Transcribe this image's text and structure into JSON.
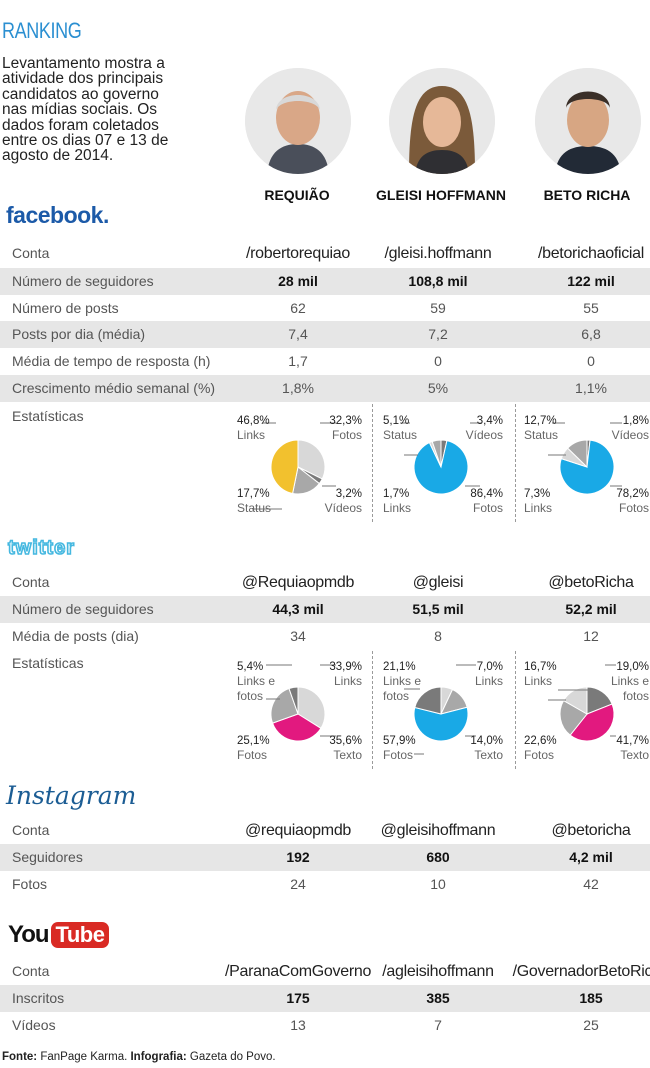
{
  "header": {
    "title": "RANKING",
    "intro_lines": [
      "Levantamento mostra a",
      "atividade dos principais",
      "candidatos ao governo",
      "nas mídias sociais. Os",
      "dados foram coletados",
      "entre os dias 07 e 13 de",
      "agosto de 2014."
    ]
  },
  "candidates": [
    {
      "name": "REQUIÃO"
    },
    {
      "name": "GLEISI HOFFMANN"
    },
    {
      "name": "BETO RICHA"
    }
  ],
  "facebook": {
    "logo": "facebook.",
    "rows": [
      {
        "label": "Conta",
        "values": [
          "/robertorequiao",
          "/gleisi.hoffmann",
          "/betorichaoficial"
        ]
      },
      {
        "label": "Número de seguidores",
        "values": [
          "28 mil",
          "108,8 mil",
          "122 mil"
        ]
      },
      {
        "label": "Número de posts",
        "values": [
          "62",
          "59",
          "55"
        ]
      },
      {
        "label": "Posts por dia (média)",
        "values": [
          "7,4",
          "7,2",
          "6,8"
        ]
      },
      {
        "label": "Média de tempo de resposta (h)",
        "values": [
          "1,7",
          "0",
          "0"
        ]
      },
      {
        "label": "Crescimento médio semanal (%)",
        "values": [
          "1,8%",
          "5%",
          "1,1%"
        ]
      }
    ],
    "stats_label": "Estatísticas"
  },
  "twitter": {
    "logo": "twitter",
    "rows": [
      {
        "label": "Conta",
        "values": [
          "@Requiaopmdb",
          "@gleisi",
          "@betoRicha"
        ]
      },
      {
        "label": "Número de seguidores",
        "values": [
          "44,3 mil",
          "51,5 mil",
          "52,2 mil"
        ]
      },
      {
        "label": "Média de posts (dia)",
        "values": [
          "34",
          "8",
          "12"
        ]
      }
    ],
    "stats_label": "Estatísticas"
  },
  "instagram": {
    "logo": "Instagram",
    "rows": [
      {
        "label": "Conta",
        "values": [
          "@requiaopmdb",
          "@gleisihoffmann",
          "@betoricha"
        ]
      },
      {
        "label": "Seguidores",
        "values": [
          "192",
          "680",
          "4,2 mil"
        ]
      },
      {
        "label": "Fotos",
        "values": [
          "24",
          "10",
          "42"
        ]
      }
    ]
  },
  "youtube": {
    "logo_you": "You",
    "logo_tube": "Tube",
    "rows": [
      {
        "label": "Conta",
        "values": [
          "/ParanaComGoverno",
          "/agleisihoffmann",
          "/GovernadorBetoRicha"
        ]
      },
      {
        "label": "Inscritos",
        "values": [
          "175",
          "385",
          "185"
        ]
      },
      {
        "label": "Vídeos",
        "values": [
          "13",
          "7",
          "25"
        ]
      }
    ]
  },
  "footer": {
    "source_label": "Fonte:",
    "source_value": "FanPage Karma.",
    "info_label": "Infografia:",
    "info_value": "Gazeta do Povo."
  },
  "colors": {
    "yellow": "#f2c12e",
    "cyan": "#19a9e6",
    "magenta": "#e2197f",
    "light": "#d8d8d8",
    "mid": "#a8a8a8",
    "dark": "#7a7a7a"
  },
  "chart_data": [
    {
      "type": "pie",
      "title": "Facebook - Requião",
      "slices": [
        {
          "name": "Fotos",
          "value": 32.3,
          "label": "32,3%",
          "text": [
            "Fotos"
          ],
          "color": "light"
        },
        {
          "name": "Vídeos",
          "value": 3.2,
          "label": "3,2%",
          "text": [
            "Vídeos"
          ],
          "color": "dark"
        },
        {
          "name": "Status",
          "value": 17.7,
          "label": "17,7%",
          "text": [
            "Status"
          ],
          "color": "mid"
        },
        {
          "name": "Links",
          "value": 46.8,
          "label": "46,8%",
          "text": [
            "Links"
          ],
          "color": "yellow"
        }
      ]
    },
    {
      "type": "pie",
      "title": "Facebook - Gleisi Hoffmann",
      "slices": [
        {
          "name": "Vídeos",
          "value": 3.4,
          "label": "3,4%",
          "text": [
            "Vídeos"
          ],
          "color": "dark"
        },
        {
          "name": "Fotos",
          "value": 86.4,
          "label": "86,4%",
          "text": [
            "Fotos"
          ],
          "color": "cyan"
        },
        {
          "name": "Links",
          "value": 1.7,
          "label": "1,7%",
          "text": [
            "Links"
          ],
          "color": "light"
        },
        {
          "name": "Status",
          "value": 5.1,
          "label": "5,1%",
          "text": [
            "Status"
          ],
          "color": "mid"
        }
      ]
    },
    {
      "type": "pie",
      "title": "Facebook - Beto Richa",
      "slices": [
        {
          "name": "Vídeos",
          "value": 1.8,
          "label": "1,8%",
          "text": [
            "Vídeos"
          ],
          "color": "dark"
        },
        {
          "name": "Fotos",
          "value": 78.2,
          "label": "78,2%",
          "text": [
            "Fotos"
          ],
          "color": "cyan"
        },
        {
          "name": "Links",
          "value": 7.3,
          "label": "7,3%",
          "text": [
            "Links"
          ],
          "color": "light"
        },
        {
          "name": "Status",
          "value": 12.7,
          "label": "12,7%",
          "text": [
            "Status"
          ],
          "color": "mid"
        }
      ]
    },
    {
      "type": "pie",
      "title": "Twitter - Requião",
      "slices": [
        {
          "name": "Links",
          "value": 33.9,
          "label": "33,9%",
          "text": [
            "Links"
          ],
          "color": "light"
        },
        {
          "name": "Texto",
          "value": 35.6,
          "label": "35,6%",
          "text": [
            "Texto"
          ],
          "color": "magenta"
        },
        {
          "name": "Fotos",
          "value": 25.1,
          "label": "25,1%",
          "text": [
            "Fotos"
          ],
          "color": "mid"
        },
        {
          "name": "Links e fotos",
          "value": 5.4,
          "label": "5,4%",
          "text": [
            "Links e",
            "fotos"
          ],
          "color": "dark"
        }
      ]
    },
    {
      "type": "pie",
      "title": "Twitter - Gleisi Hoffmann",
      "slices": [
        {
          "name": "Links",
          "value": 7.0,
          "label": "7,0%",
          "text": [
            "Links"
          ],
          "color": "light"
        },
        {
          "name": "Texto",
          "value": 14.0,
          "label": "14,0%",
          "text": [
            "Texto"
          ],
          "color": "mid"
        },
        {
          "name": "Fotos",
          "value": 57.9,
          "label": "57,9%",
          "text": [
            "Fotos"
          ],
          "color": "cyan"
        },
        {
          "name": "Links e fotos",
          "value": 21.1,
          "label": "21,1%",
          "text": [
            "Links e",
            "fotos"
          ],
          "color": "dark"
        }
      ]
    },
    {
      "type": "pie",
      "title": "Twitter - Beto Richa",
      "slices": [
        {
          "name": "Links e fotos",
          "value": 19.0,
          "label": "19,0%",
          "text": [
            "Links e",
            "fotos"
          ],
          "color": "dark"
        },
        {
          "name": "Texto",
          "value": 41.7,
          "label": "41,7%",
          "text": [
            "Texto"
          ],
          "color": "magenta"
        },
        {
          "name": "Fotos",
          "value": 22.6,
          "label": "22,6%",
          "text": [
            "Fotos"
          ],
          "color": "mid"
        },
        {
          "name": "Links",
          "value": 16.7,
          "label": "16,7%",
          "text": [
            "Links"
          ],
          "color": "light"
        }
      ]
    }
  ]
}
